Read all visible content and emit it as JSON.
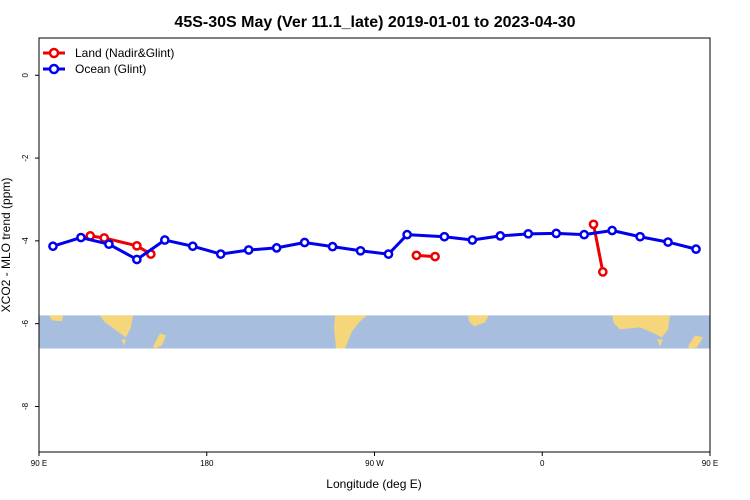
{
  "chart_data": {
    "type": "line",
    "title": "45S-30S May (Ver 11.1_late)   2019-01-01 to 2023-04-30",
    "xlabel": "Longitude (deg E)",
    "ylabel": "XCO2 - MLO trend (ppm)",
    "xlim": [
      90,
      450
    ],
    "ylim": [
      -9.1,
      0.9
    ],
    "x_ticks": [
      {
        "value": 90,
        "label": "90 E"
      },
      {
        "value": 180,
        "label": "180"
      },
      {
        "value": 270,
        "label": "90 W"
      },
      {
        "value": 360,
        "label": "0"
      },
      {
        "value": 450,
        "label": "90 E"
      },
      {
        "value": 540,
        "label": "180"
      }
    ],
    "y_ticks": [
      {
        "value": 0,
        "label": "0"
      },
      {
        "value": -2,
        "label": "-2"
      },
      {
        "value": -4,
        "label": "-4"
      },
      {
        "value": -6,
        "label": "-6"
      },
      {
        "value": -8,
        "label": "-8"
      }
    ],
    "legend_position": "top-left",
    "map_band": {
      "y_top": -5.8,
      "y_bottom": -6.6,
      "ocean_color": "#a7bedf",
      "land_color": "#f5d67a"
    },
    "series": [
      {
        "name": "Land (Nadir&Glint)",
        "color": "#ee0000",
        "segments": [
          [
            {
              "x": 117.5,
              "y": -3.88
            },
            {
              "x": 125,
              "y": -3.93
            },
            {
              "x": 142.5,
              "y": -4.12
            },
            {
              "x": 150,
              "y": -4.32
            }
          ],
          [
            {
              "x": 292.5,
              "y": -4.35
            },
            {
              "x": 302.5,
              "y": -4.38
            }
          ],
          [
            {
              "x": 387.5,
              "y": -3.6
            },
            {
              "x": 392.5,
              "y": -4.75
            }
          ],
          [
            {
              "x": 477.5,
              "y": -3.88
            },
            {
              "x": 485,
              "y": -3.93
            },
            {
              "x": 502.5,
              "y": -4.12
            },
            {
              "x": 510,
              "y": -4.32
            }
          ]
        ]
      },
      {
        "name": "Ocean (Glint)",
        "color": "#0000ee",
        "segments": [
          [
            {
              "x": 97.5,
              "y": -4.13
            },
            {
              "x": 112.5,
              "y": -3.92
            },
            {
              "x": 127.5,
              "y": -4.08
            },
            {
              "x": 142.5,
              "y": -4.45
            },
            {
              "x": 157.5,
              "y": -3.98
            },
            {
              "x": 172.5,
              "y": -4.13
            },
            {
              "x": 187.5,
              "y": -4.32
            },
            {
              "x": 202.5,
              "y": -4.22
            },
            {
              "x": 217.5,
              "y": -4.17
            },
            {
              "x": 232.5,
              "y": -4.04
            },
            {
              "x": 247.5,
              "y": -4.14
            },
            {
              "x": 262.5,
              "y": -4.24
            },
            {
              "x": 277.5,
              "y": -4.32
            },
            {
              "x": 287.5,
              "y": -3.85
            },
            {
              "x": 307.5,
              "y": -3.9
            },
            {
              "x": 322.5,
              "y": -3.98
            },
            {
              "x": 337.5,
              "y": -3.88
            },
            {
              "x": 352.5,
              "y": -3.83
            },
            {
              "x": 367.5,
              "y": -3.82
            },
            {
              "x": 382.5,
              "y": -3.85
            },
            {
              "x": 397.5,
              "y": -3.75
            },
            {
              "x": 412.5,
              "y": -3.9
            },
            {
              "x": 427.5,
              "y": -4.03
            },
            {
              "x": 442.5,
              "y": -4.2
            },
            {
              "x": 457.5,
              "y": -4.14
            },
            {
              "x": 472.5,
              "y": -3.92
            },
            {
              "x": 487.5,
              "y": -4.08
            },
            {
              "x": 502.5,
              "y": -4.45
            },
            {
              "x": 517.5,
              "y": -3.98
            },
            {
              "x": 532.5,
              "y": -4.13
            }
          ]
        ]
      }
    ]
  }
}
